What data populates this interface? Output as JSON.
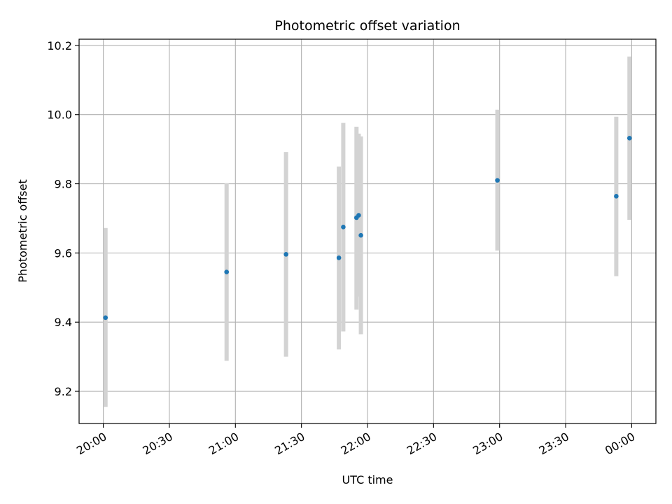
{
  "chart_data": {
    "type": "scatter",
    "title": "Photometric offset variation",
    "xlabel": "UTC time",
    "ylabel": "Photometric offset",
    "x_axis_kind": "time",
    "xlim": [
      "19:49",
      "00:11"
    ],
    "ylim": [
      9.107,
      10.218
    ],
    "grid": true,
    "x_ticks": [
      {
        "value": "20:00",
        "label": "20:00"
      },
      {
        "value": "20:30",
        "label": "20:30"
      },
      {
        "value": "21:00",
        "label": "21:00"
      },
      {
        "value": "21:30",
        "label": "21:30"
      },
      {
        "value": "22:00",
        "label": "22:00"
      },
      {
        "value": "22:30",
        "label": "22:30"
      },
      {
        "value": "23:00",
        "label": "23:00"
      },
      {
        "value": "23:30",
        "label": "23:30"
      },
      {
        "value": "00:00",
        "label": "00:00"
      }
    ],
    "y_ticks": [
      "9.2",
      "9.4",
      "9.6",
      "9.8",
      "10.0",
      "10.2"
    ],
    "series": [
      {
        "marker_color": "#1f77b4",
        "errorbar_color": "#d3d3d3",
        "points": [
          {
            "x": "20:01",
            "y": 9.413,
            "ylow": 9.155,
            "yhigh": 9.672
          },
          {
            "x": "20:56",
            "y": 9.545,
            "ylow": 9.288,
            "yhigh": 9.802
          },
          {
            "x": "21:23",
            "y": 9.596,
            "ylow": 9.3,
            "yhigh": 9.892
          },
          {
            "x": "21:47",
            "y": 9.586,
            "ylow": 9.321,
            "yhigh": 9.85
          },
          {
            "x": "21:49",
            "y": 9.675,
            "ylow": 9.373,
            "yhigh": 9.976
          },
          {
            "x": "21:55",
            "y": 9.702,
            "ylow": 9.436,
            "yhigh": 9.965
          },
          {
            "x": "21:56",
            "y": 9.709,
            "ylow": 9.474,
            "yhigh": 9.945
          },
          {
            "x": "21:57",
            "y": 9.651,
            "ylow": 9.365,
            "yhigh": 9.937
          },
          {
            "x": "22:59",
            "y": 9.81,
            "ylow": 9.607,
            "yhigh": 10.014
          },
          {
            "x": "23:53",
            "y": 9.764,
            "ylow": 9.533,
            "yhigh": 9.994
          },
          {
            "x": "23:59",
            "y": 9.932,
            "ylow": 9.696,
            "yhigh": 10.168
          }
        ]
      }
    ]
  }
}
